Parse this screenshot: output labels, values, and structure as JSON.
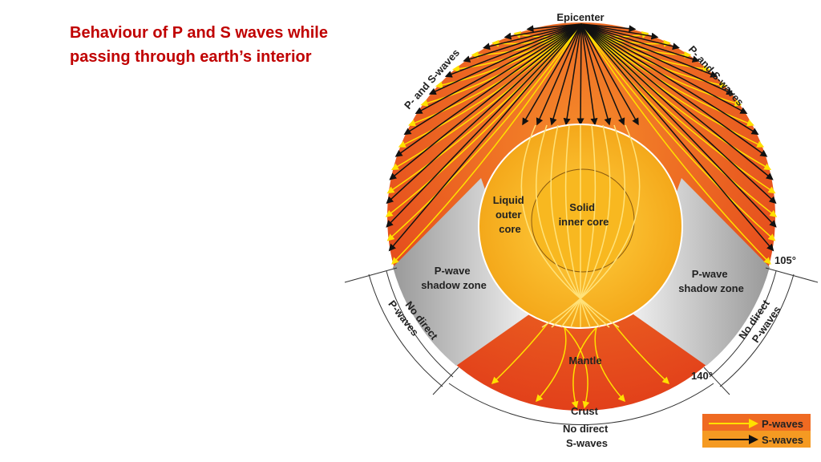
{
  "slide": {
    "title_line1": "Behaviour of P and S waves while",
    "title_line2": "passing through earth’s interior"
  },
  "diagram": {
    "epicenter": "Epicenter",
    "ps_left": "P- and S-waves",
    "ps_right": "P- and S-waves",
    "outer_core": [
      "Liquid",
      "outer",
      "core"
    ],
    "inner_core": [
      "Solid",
      "inner core"
    ],
    "shadow_left": [
      "P-wave",
      "shadow zone"
    ],
    "shadow_right": [
      "P-wave",
      "shadow zone"
    ],
    "mantle": "Mantle",
    "crust": "Crust",
    "deg105": "105°",
    "deg140": "140°",
    "no_p_left": [
      "No direct",
      "P-waves"
    ],
    "no_p_right": [
      "No direct",
      "P-waves"
    ],
    "no_s": [
      "No direct",
      "S-waves"
    ],
    "legend": {
      "p": "P-waves",
      "s": "S-waves"
    },
    "colors": {
      "mantle": "#e8501e",
      "core": "#f7b21c",
      "shadow": "#b9b9b9",
      "p_wave": "#ffe000",
      "s_wave": "#111111",
      "title": "#c00000"
    }
  }
}
